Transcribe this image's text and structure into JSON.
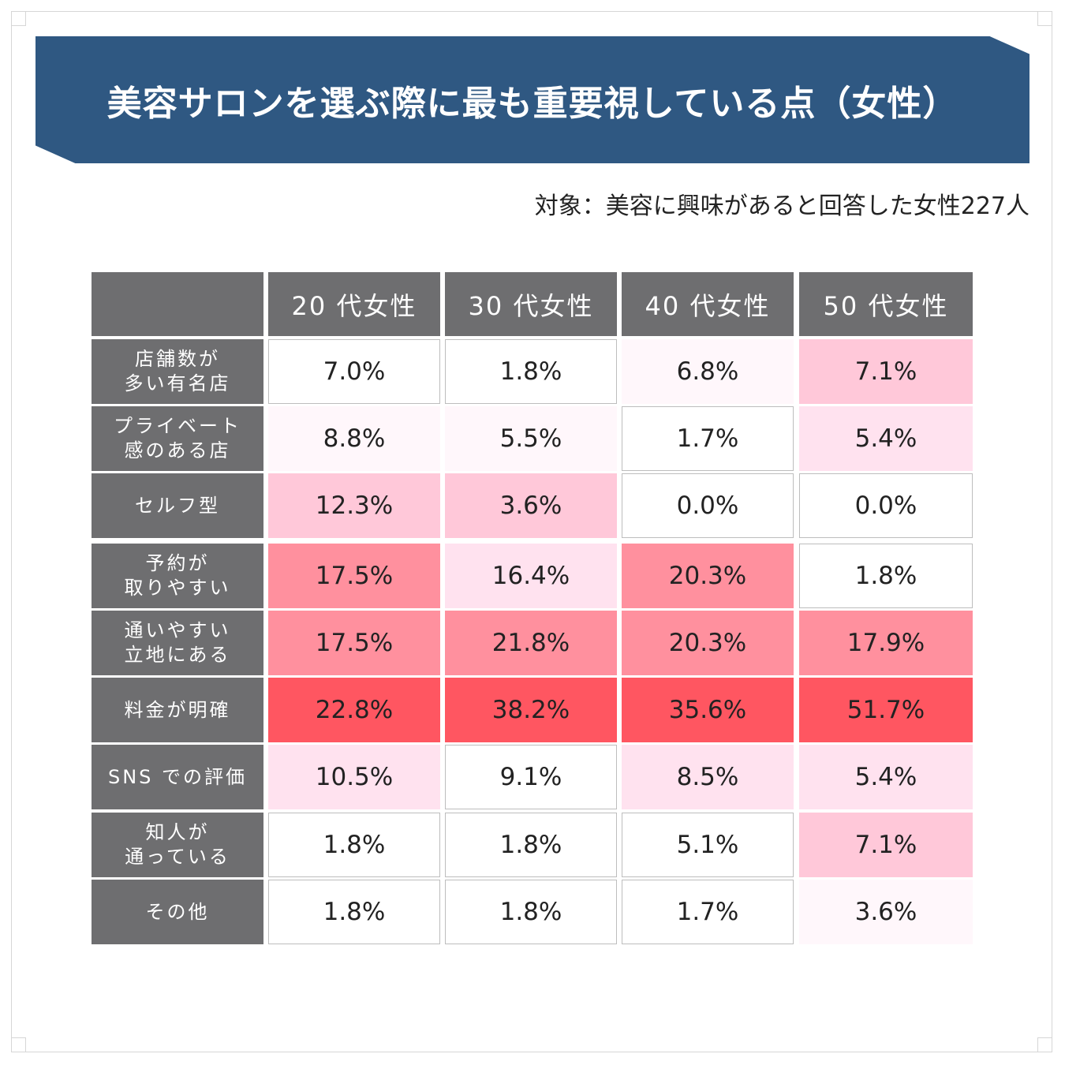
{
  "title": "美容サロンを選ぶ際に最も重要視している点（女性）",
  "subtitle": "対象：美容に興味があると回答した女性227人",
  "colors": {
    "banner": "#2f5882",
    "header_gray": "#6e6e70",
    "level_0": "#ffffff",
    "level_1": "#fff7fb",
    "level_2": "#ffe2ef",
    "level_3": "#ffc8d9",
    "level_4": "#ff909e",
    "level_5": "#ff5661"
  },
  "chart_data": {
    "type": "table",
    "columns": [
      "20 代女性",
      "30 代女性",
      "40 代女性",
      "50 代女性"
    ],
    "rows": [
      {
        "label": "店舗数が\n多い有名店",
        "values": [
          "7.0%",
          "1.8%",
          "6.8%",
          "7.1%"
        ],
        "shade": [
          0,
          0,
          1,
          3
        ]
      },
      {
        "label": "プライベート\n感のある店",
        "values": [
          "8.8%",
          "5.5%",
          "1.7%",
          "5.4%"
        ],
        "shade": [
          1,
          1,
          0,
          2
        ]
      },
      {
        "label": "セルフ型",
        "values": [
          "12.3%",
          "3.6%",
          "0.0%",
          "0.0%"
        ],
        "shade": [
          3,
          3,
          0,
          0
        ]
      },
      {
        "label": "予約が\n取りやすい",
        "values": [
          "17.5%",
          "16.4%",
          "20.3%",
          "1.8%"
        ],
        "shade": [
          4,
          2,
          4,
          0
        ]
      },
      {
        "label": "通いやすい\n立地にある",
        "values": [
          "17.5%",
          "21.8%",
          "20.3%",
          "17.9%"
        ],
        "shade": [
          4,
          4,
          4,
          4
        ]
      },
      {
        "label": "料金が明確",
        "values": [
          "22.8%",
          "38.2%",
          "35.6%",
          "51.7%"
        ],
        "shade": [
          5,
          5,
          5,
          5
        ]
      },
      {
        "label": "SNS での評価",
        "values": [
          "10.5%",
          "9.1%",
          "8.5%",
          "5.4%"
        ],
        "shade": [
          2,
          0,
          2,
          2
        ]
      },
      {
        "label": "知人が\n通っている",
        "values": [
          "1.8%",
          "1.8%",
          "5.1%",
          "7.1%"
        ],
        "shade": [
          0,
          0,
          0,
          3
        ]
      },
      {
        "label": "その他",
        "values": [
          "1.8%",
          "1.8%",
          "1.7%",
          "3.6%"
        ],
        "shade": [
          0,
          0,
          0,
          1
        ]
      }
    ]
  }
}
